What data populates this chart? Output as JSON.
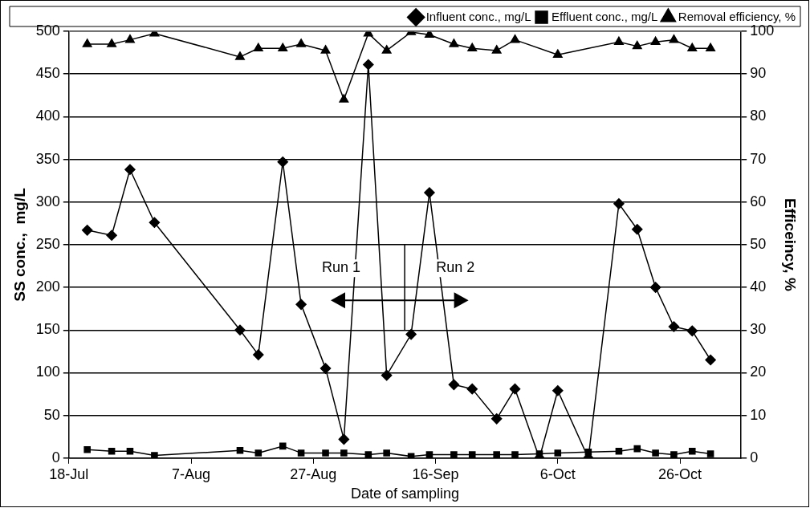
{
  "chart_data": {
    "type": "line",
    "xlabel": "Date of sampling",
    "ylabel": "SS conc.,  mg/L",
    "y2label": "Efficeincy, %",
    "xlim": [
      "--07-18",
      "--11-05"
    ],
    "xticks": [
      {
        "value": "--07-18",
        "label": "18-Jul"
      },
      {
        "value": "--08-07",
        "label": "7-Aug"
      },
      {
        "value": "--08-27",
        "label": "27-Aug"
      },
      {
        "value": "--09-16",
        "label": "16-Sep"
      },
      {
        "value": "--10-06",
        "label": "6-Oct"
      },
      {
        "value": "--10-26",
        "label": "26-Oct"
      }
    ],
    "ylim": [
      0,
      500
    ],
    "yticks": [
      0,
      50,
      100,
      150,
      200,
      250,
      300,
      350,
      400,
      450,
      500
    ],
    "y2lim": [
      0,
      100
    ],
    "y2ticks": [
      0,
      10,
      20,
      30,
      40,
      50,
      60,
      70,
      80,
      90,
      100
    ],
    "x": [
      "--07-21",
      "--07-25",
      "--07-28",
      "--08-01",
      "--08-15",
      "--08-18",
      "--08-22",
      "--08-25",
      "--08-29",
      "--09-01",
      "--09-05",
      "--09-08",
      "--09-12",
      "--09-15",
      "--09-19",
      "--09-22",
      "--09-26",
      "--09-29",
      "--10-03",
      "--10-06",
      "--10-11",
      "--10-16",
      "--10-19",
      "--10-22",
      "--10-25",
      "--10-28",
      "--10-31"
    ],
    "series": [
      {
        "name": "Influent conc., mg/L",
        "color": "#000000",
        "marker": "diamond",
        "values": [
          267,
          261,
          338,
          276,
          150,
          121,
          347,
          180,
          105,
          22,
          461,
          97,
          145,
          311,
          86,
          81,
          46,
          81,
          0,
          79,
          0,
          298,
          268,
          200,
          154,
          149,
          115
        ]
      },
      {
        "name": "Effluent conc., mg/L",
        "color": "#000000",
        "marker": "square",
        "values": [
          10,
          8,
          8,
          3,
          9,
          6,
          14,
          6,
          6,
          6,
          4,
          6,
          2,
          4,
          4,
          4,
          4,
          4,
          5,
          6,
          7,
          8,
          11,
          6,
          4,
          8,
          5
        ]
      },
      {
        "name": "Removal efficiency, %",
        "color": "#000000",
        "marker": "triangle",
        "axis": "y2",
        "values": [
          97,
          97,
          98,
          99.5,
          94,
          96,
          96,
          97,
          95.5,
          84,
          99.5,
          95.5,
          99.8,
          99.2,
          97,
          96,
          95.5,
          98,
          null,
          94.5,
          null,
          97.5,
          96.5,
          97.5,
          98,
          96,
          96
        ]
      }
    ],
    "annotations": [
      "Run 1",
      "Run 2"
    ],
    "grid": "y",
    "legend": "top",
    "line_style": "solid"
  }
}
